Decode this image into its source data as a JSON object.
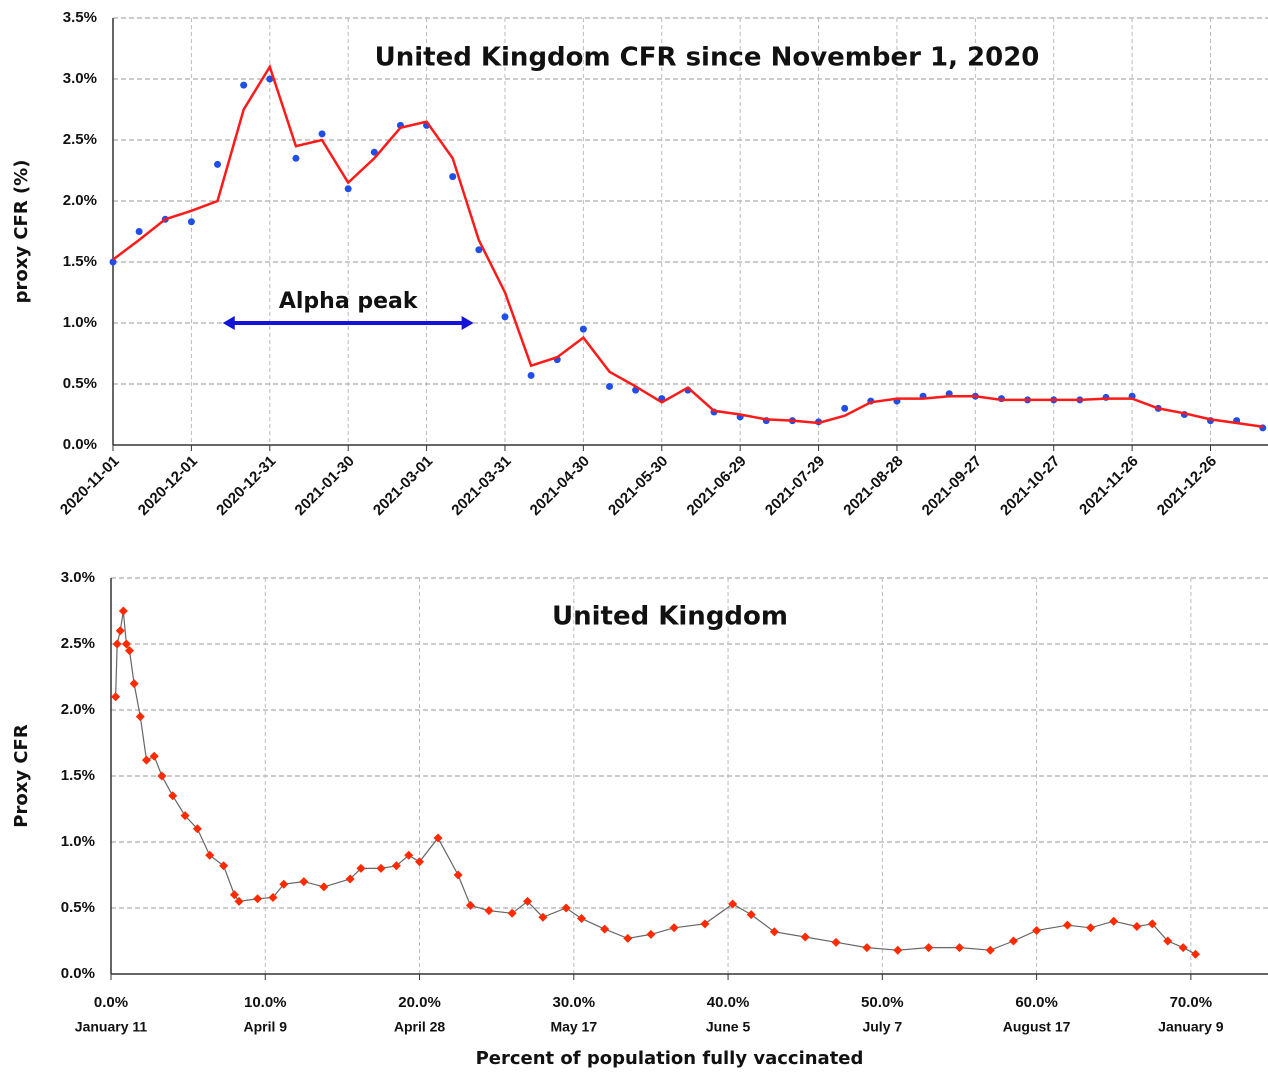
{
  "chart_data": [
    {
      "type": "line",
      "title": "United Kingdom CFR since November 1, 2020",
      "y_label": "proxy CFR (%)",
      "x": [
        "2020-11-01",
        "2020-11-11",
        "2020-11-21",
        "2020-12-01",
        "2020-12-11",
        "2020-12-21",
        "2020-12-31",
        "2021-01-10",
        "2021-01-20",
        "2021-01-30",
        "2021-02-09",
        "2021-02-19",
        "2021-03-01",
        "2021-03-11",
        "2021-03-21",
        "2021-03-31",
        "2021-04-10",
        "2021-04-20",
        "2021-04-30",
        "2021-05-10",
        "2021-05-20",
        "2021-05-30",
        "2021-06-09",
        "2021-06-19",
        "2021-06-29",
        "2021-07-09",
        "2021-07-19",
        "2021-07-29",
        "2021-08-08",
        "2021-08-18",
        "2021-08-28",
        "2021-09-07",
        "2021-09-17",
        "2021-09-27",
        "2021-10-07",
        "2021-10-17",
        "2021-10-27",
        "2021-11-06",
        "2021-11-16",
        "2021-11-26",
        "2021-12-06",
        "2021-12-16",
        "2021-12-26",
        "2022-01-05",
        "2022-01-15"
      ],
      "series": [
        {
          "mark": "dot",
          "color": "#1f4fe6",
          "values": [
            1.5,
            1.75,
            1.85,
            1.83,
            2.3,
            2.95,
            3.0,
            2.35,
            2.55,
            2.1,
            2.4,
            2.62,
            2.62,
            2.2,
            1.6,
            1.05,
            0.57,
            0.7,
            0.95,
            0.48,
            0.45,
            0.38,
            0.45,
            0.27,
            0.23,
            0.2,
            0.2,
            0.19,
            0.3,
            0.36,
            0.36,
            0.4,
            0.42,
            0.4,
            0.38,
            0.37,
            0.37,
            0.37,
            0.39,
            0.4,
            0.3,
            0.25,
            0.2,
            0.2,
            0.14
          ]
        },
        {
          "mark": "line",
          "color": "#ff1a1a",
          "values": [
            1.52,
            1.68,
            1.85,
            1.92,
            2.0,
            2.75,
            3.1,
            2.45,
            2.5,
            2.15,
            2.35,
            2.6,
            2.65,
            2.35,
            1.68,
            1.25,
            0.65,
            0.72,
            0.88,
            0.6,
            0.48,
            0.35,
            0.47,
            0.28,
            0.25,
            0.21,
            0.2,
            0.18,
            0.24,
            0.35,
            0.38,
            0.38,
            0.4,
            0.4,
            0.37,
            0.37,
            0.37,
            0.37,
            0.38,
            0.38,
            0.3,
            0.26,
            0.21,
            0.18,
            0.15
          ]
        }
      ],
      "xlim": [
        "2020-11-01",
        "2022-01-17"
      ],
      "xticks": [
        "2020-11-01",
        "2020-12-01",
        "2020-12-31",
        "2021-01-30",
        "2021-03-01",
        "2021-03-31",
        "2021-04-30",
        "2021-05-30",
        "2021-06-29",
        "2021-07-29",
        "2021-08-28",
        "2021-09-27",
        "2021-10-27",
        "2021-11-26",
        "2021-12-26"
      ],
      "ylim": [
        0,
        3.5
      ],
      "yticks": [
        {
          "value": 0,
          "label": "0.0%"
        },
        {
          "value": 0.5,
          "label": "0.5%"
        },
        {
          "value": 1,
          "label": "1.0%"
        },
        {
          "value": 1.5,
          "label": "1.5%"
        },
        {
          "value": 2,
          "label": "2.0%"
        },
        {
          "value": 2.5,
          "label": "2.5%"
        },
        {
          "value": 3,
          "label": "3.0%"
        },
        {
          "value": 3.5,
          "label": "3.5%"
        }
      ],
      "grid": true,
      "annotation": {
        "text": "Alpha peak",
        "x": [
          "2020-12-13",
          "2021-03-19"
        ],
        "y": 1.0,
        "color": "#1414d8"
      }
    },
    {
      "type": "scatter",
      "title": "United Kingdom",
      "y_label": "Proxy CFR",
      "x_label": "Percent of population fully vaccinated",
      "x": [
        0.3,
        0.4,
        0.6,
        0.8,
        1.0,
        1.2,
        1.5,
        1.9,
        2.3,
        2.8,
        3.3,
        4.0,
        4.8,
        5.6,
        6.4,
        7.3,
        8.0,
        8.3,
        9.5,
        10.5,
        11.2,
        12.5,
        13.8,
        15.5,
        16.2,
        17.5,
        18.5,
        19.3,
        20.0,
        21.2,
        22.5,
        23.3,
        24.5,
        26.0,
        27.0,
        28.0,
        29.5,
        30.5,
        32.0,
        33.5,
        35.0,
        36.5,
        38.5,
        40.3,
        41.5,
        43.0,
        45.0,
        47.0,
        49.0,
        51.0,
        53.0,
        55.0,
        57.0,
        58.5,
        60.0,
        62.0,
        63.5,
        65.0,
        66.5,
        67.5,
        68.5,
        69.5,
        70.3
      ],
      "series": [
        {
          "color": "#ff2a00",
          "line_color": "#666666",
          "values": [
            2.1,
            2.5,
            2.6,
            2.75,
            2.5,
            2.45,
            2.2,
            1.95,
            1.62,
            1.65,
            1.5,
            1.35,
            1.2,
            1.1,
            0.9,
            0.82,
            0.6,
            0.55,
            0.57,
            0.58,
            0.68,
            0.7,
            0.66,
            0.72,
            0.8,
            0.8,
            0.82,
            0.9,
            0.85,
            1.03,
            0.75,
            0.52,
            0.48,
            0.46,
            0.55,
            0.43,
            0.5,
            0.42,
            0.34,
            0.27,
            0.3,
            0.35,
            0.38,
            0.53,
            0.45,
            0.32,
            0.28,
            0.24,
            0.2,
            0.18,
            0.2,
            0.2,
            0.18,
            0.25,
            0.33,
            0.37,
            0.35,
            0.4,
            0.36,
            0.38,
            0.25,
            0.2,
            0.15
          ]
        }
      ],
      "xlim": [
        0,
        75
      ],
      "xticks": [
        {
          "value": 0,
          "label": "0.0%"
        },
        {
          "value": 10,
          "label": "10.0%"
        },
        {
          "value": 20,
          "label": "20.0%"
        },
        {
          "value": 30,
          "label": "30.0%"
        },
        {
          "value": 40,
          "label": "40.0%"
        },
        {
          "value": 50,
          "label": "50.0%"
        },
        {
          "value": 60,
          "label": "60.0%"
        },
        {
          "value": 70,
          "label": "70.0%"
        }
      ],
      "xtick_dates": [
        "January 11",
        "April 9",
        "April 28",
        "May 17",
        "June 5",
        "July 7",
        "August 17",
        "January 9"
      ],
      "ylim": [
        0,
        3
      ],
      "yticks": [
        {
          "value": 0,
          "label": "0.0%"
        },
        {
          "value": 0.5,
          "label": "0.5%"
        },
        {
          "value": 1,
          "label": "1.0%"
        },
        {
          "value": 1.5,
          "label": "1.5%"
        },
        {
          "value": 2,
          "label": "2.0%"
        },
        {
          "value": 2.5,
          "label": "2.5%"
        },
        {
          "value": 3,
          "label": "3.0%"
        }
      ],
      "grid": true
    }
  ]
}
